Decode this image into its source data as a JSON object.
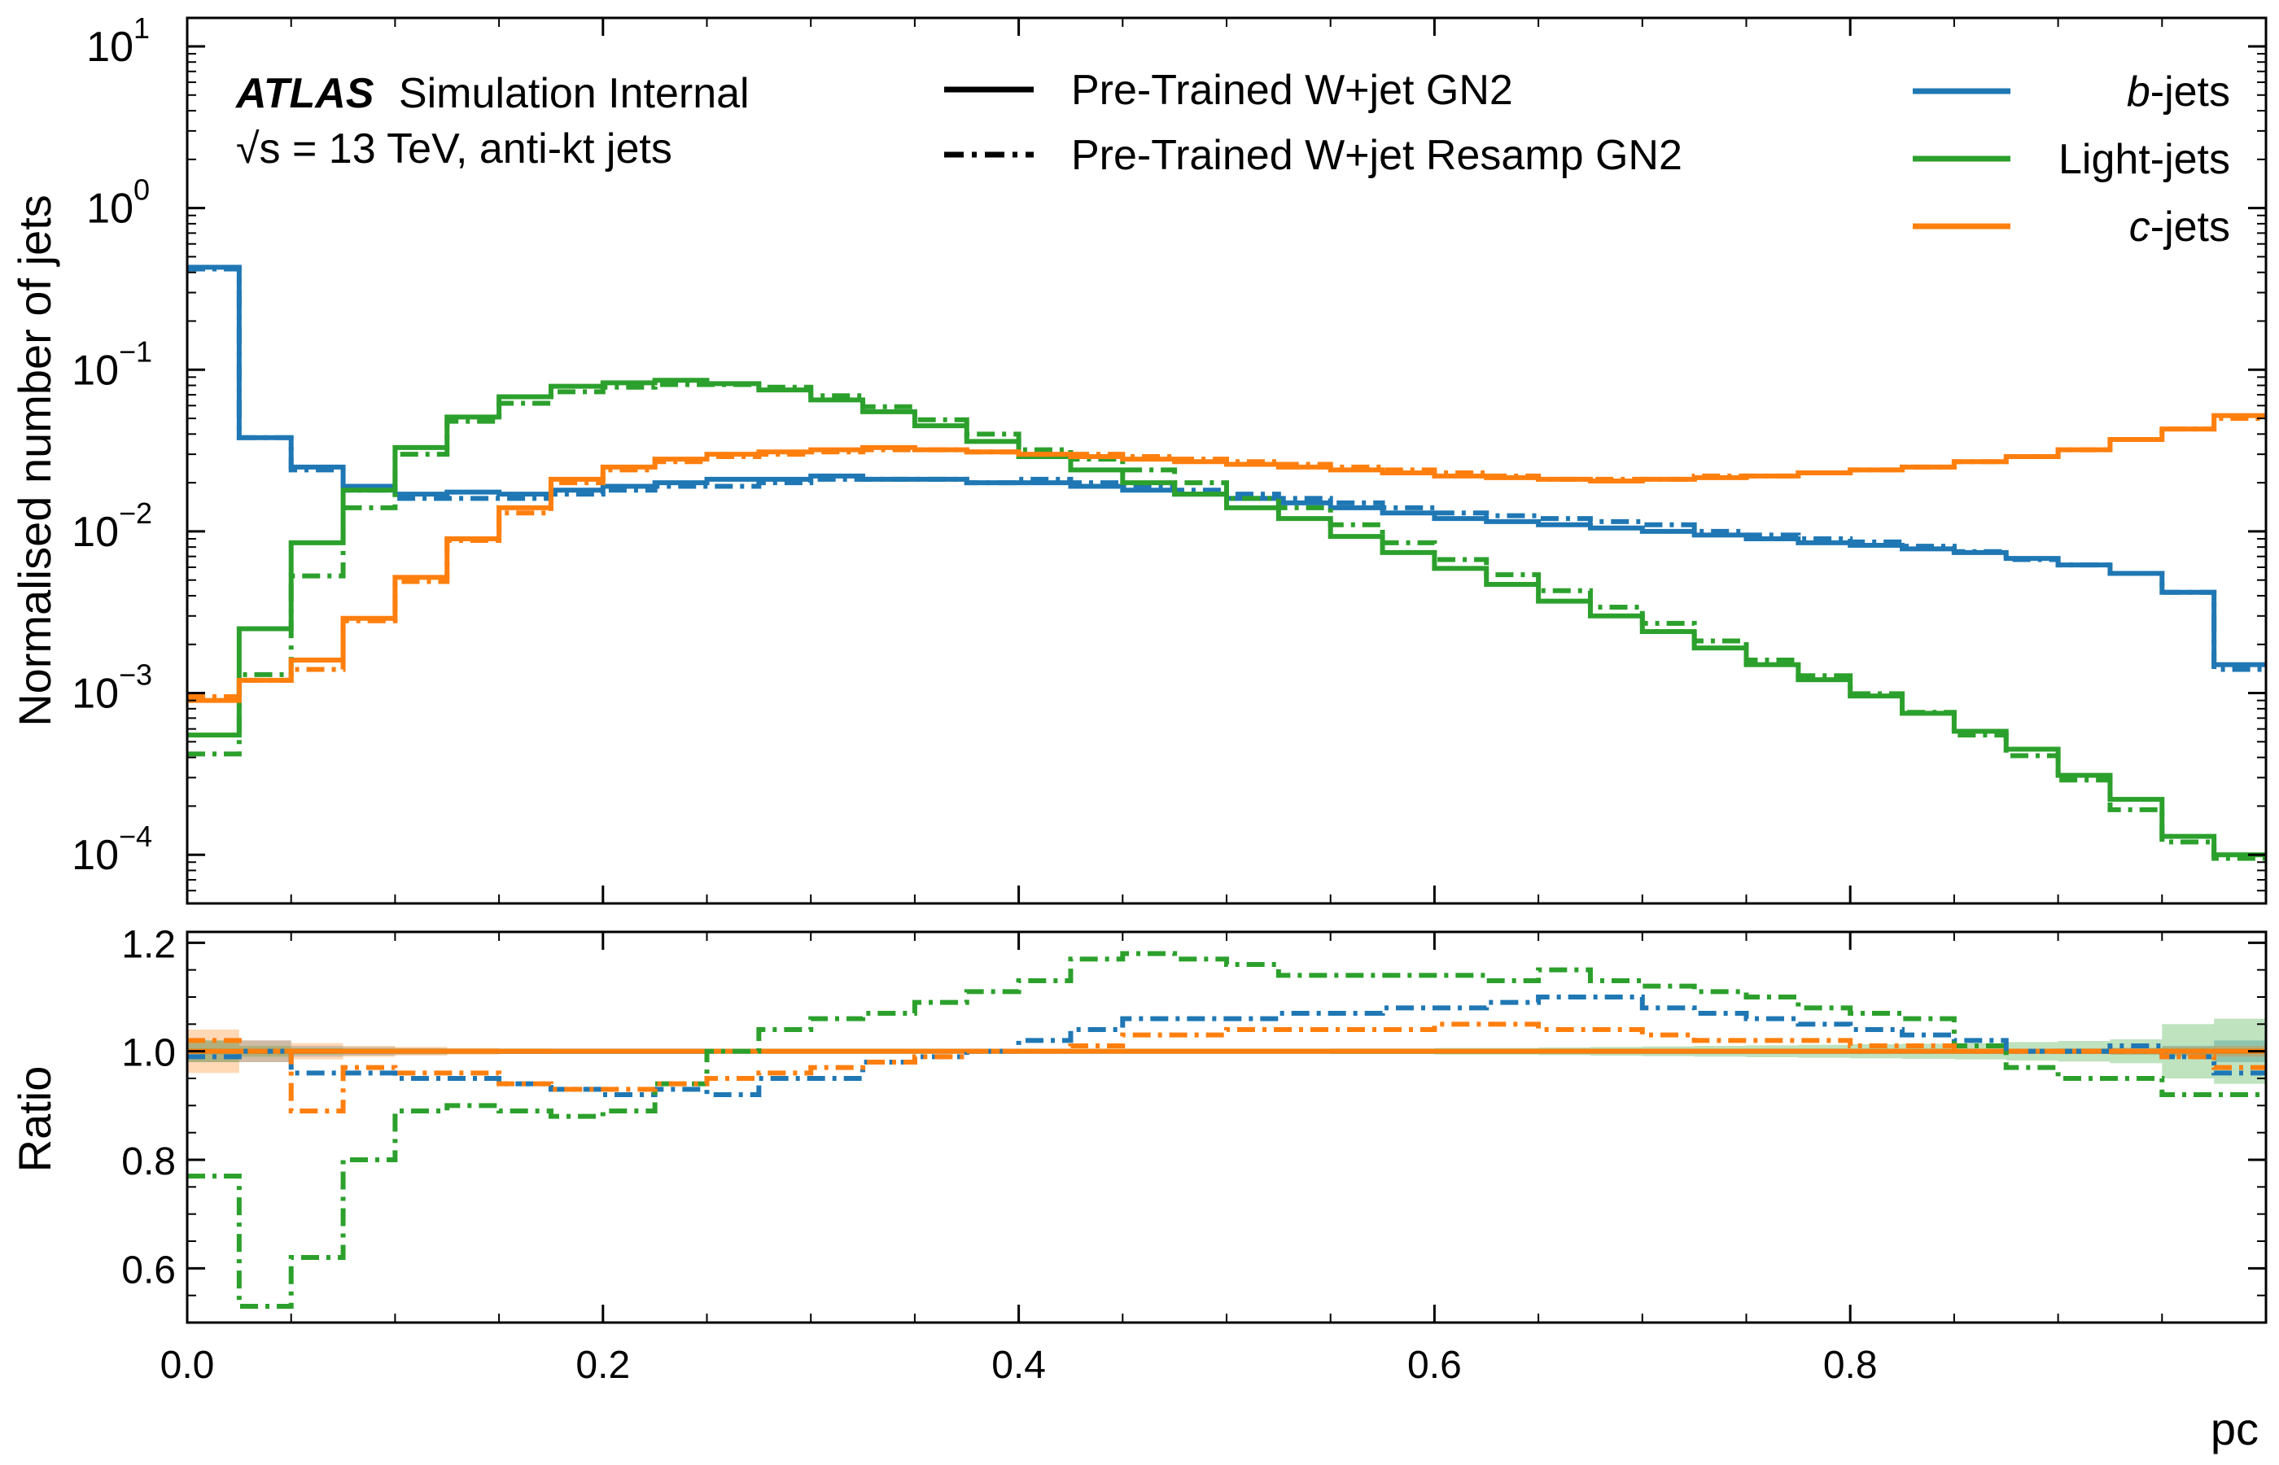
{
  "chart_data": [
    {
      "type": "line",
      "panel": "main",
      "ylabel": "Normalised number of jets",
      "yscale": "log",
      "ylim": [
        5e-05,
        15
      ],
      "xlim": [
        0.0,
        1.0
      ],
      "ytick_labels": [
        {
          "value": 0.0001,
          "base": "10",
          "exp": "−4"
        },
        {
          "value": 0.001,
          "base": "10",
          "exp": "−3"
        },
        {
          "value": 0.01,
          "base": "10",
          "exp": "−2"
        },
        {
          "value": 0.1,
          "base": "10",
          "exp": "−1"
        },
        {
          "value": 1,
          "base": "10",
          "exp": "0"
        },
        {
          "value": 10,
          "base": "10",
          "exp": "1"
        }
      ],
      "annotations": {
        "atlas": "ATLAS",
        "atlas_suffix": "Simulation Internal",
        "energy_line": "√s = 13 TeV, anti-kt jets"
      },
      "style_legend": [
        {
          "label": "Pre-Trained W+jet GN2",
          "style": "solid"
        },
        {
          "label": "Pre-Trained W+jet Resamp GN2",
          "style": "dashdot"
        }
      ],
      "legend": [
        {
          "label_prefix": "b",
          "label_suffix": "-jets",
          "color": "#1f77b4"
        },
        {
          "label_prefix": "",
          "label_suffix": "Light-jets",
          "color": "#2ca02c"
        },
        {
          "label_prefix": "c",
          "label_suffix": "-jets",
          "color": "#ff7f0e"
        }
      ],
      "legend_position": "top-right",
      "bin_edges": [
        0.0,
        0.025,
        0.05,
        0.075,
        0.1,
        0.125,
        0.15,
        0.175,
        0.2,
        0.225,
        0.25,
        0.275,
        0.3,
        0.325,
        0.35,
        0.375,
        0.4,
        0.425,
        0.45,
        0.475,
        0.5,
        0.525,
        0.55,
        0.575,
        0.6,
        0.625,
        0.65,
        0.675,
        0.7,
        0.725,
        0.75,
        0.775,
        0.8,
        0.825,
        0.85,
        0.875,
        0.9,
        0.925,
        0.95,
        0.975,
        1.0
      ],
      "series": [
        {
          "name": "b-jets",
          "color": "#1f77b4",
          "style": "solid",
          "values": [
            0.43,
            0.038,
            0.025,
            0.019,
            0.017,
            0.0175,
            0.017,
            0.018,
            0.019,
            0.02,
            0.021,
            0.021,
            0.022,
            0.021,
            0.021,
            0.02,
            0.02,
            0.019,
            0.018,
            0.017,
            0.016,
            0.015,
            0.014,
            0.013,
            0.012,
            0.0115,
            0.011,
            0.0105,
            0.01,
            0.0095,
            0.009,
            0.0085,
            0.0082,
            0.0078,
            0.0074,
            0.0068,
            0.0062,
            0.0055,
            0.0042,
            0.0015
          ]
        },
        {
          "name": "b-jets",
          "color": "#1f77b4",
          "style": "dashdot",
          "values": [
            0.42,
            0.038,
            0.024,
            0.018,
            0.016,
            0.016,
            0.016,
            0.017,
            0.018,
            0.019,
            0.019,
            0.02,
            0.021,
            0.021,
            0.021,
            0.02,
            0.021,
            0.02,
            0.019,
            0.018,
            0.017,
            0.016,
            0.015,
            0.014,
            0.013,
            0.0125,
            0.012,
            0.0115,
            0.011,
            0.01,
            0.0095,
            0.009,
            0.0086,
            0.0081,
            0.0075,
            0.0067,
            0.0062,
            0.0055,
            0.0042,
            0.0014
          ]
        },
        {
          "name": "Light-jets",
          "color": "#2ca02c",
          "style": "solid",
          "values": [
            0.00055,
            0.0025,
            0.0085,
            0.018,
            0.033,
            0.051,
            0.068,
            0.079,
            0.083,
            0.086,
            0.082,
            0.075,
            0.065,
            0.055,
            0.045,
            0.036,
            0.029,
            0.024,
            0.02,
            0.017,
            0.014,
            0.012,
            0.0093,
            0.0074,
            0.0059,
            0.0047,
            0.0037,
            0.003,
            0.0024,
            0.0019,
            0.0015,
            0.00121,
            0.00096,
            0.00075,
            0.00058,
            0.00045,
            0.00031,
            0.00022,
            0.00013,
            0.0001
          ]
        },
        {
          "name": "Light-jets",
          "color": "#2ca02c",
          "style": "dashdot",
          "values": [
            0.00042,
            0.0013,
            0.0053,
            0.014,
            0.03,
            0.048,
            0.062,
            0.073,
            0.078,
            0.081,
            0.081,
            0.078,
            0.069,
            0.059,
            0.049,
            0.04,
            0.032,
            0.028,
            0.024,
            0.02,
            0.016,
            0.014,
            0.011,
            0.0085,
            0.0067,
            0.0054,
            0.0043,
            0.0034,
            0.0027,
            0.0021,
            0.0016,
            0.00128,
            0.00099,
            0.00076,
            0.00055,
            0.00041,
            0.00029,
            0.00019,
            0.00012,
            9.5e-05
          ]
        },
        {
          "name": "c-jets",
          "color": "#ff7f0e",
          "style": "solid",
          "values": [
            0.0009,
            0.0012,
            0.0016,
            0.0029,
            0.0052,
            0.009,
            0.014,
            0.021,
            0.025,
            0.028,
            0.03,
            0.031,
            0.032,
            0.033,
            0.032,
            0.031,
            0.03,
            0.029,
            0.028,
            0.027,
            0.026,
            0.025,
            0.024,
            0.023,
            0.022,
            0.0215,
            0.021,
            0.0205,
            0.021,
            0.0215,
            0.022,
            0.023,
            0.024,
            0.025,
            0.027,
            0.029,
            0.032,
            0.037,
            0.043,
            0.052
          ]
        },
        {
          "name": "c-jets",
          "color": "#ff7f0e",
          "style": "dashdot",
          "values": [
            0.00095,
            0.0012,
            0.0014,
            0.0028,
            0.0049,
            0.0088,
            0.013,
            0.02,
            0.024,
            0.027,
            0.029,
            0.03,
            0.031,
            0.032,
            0.032,
            0.031,
            0.03,
            0.03,
            0.029,
            0.028,
            0.027,
            0.026,
            0.025,
            0.024,
            0.023,
            0.022,
            0.021,
            0.021,
            0.021,
            0.022,
            0.022,
            0.023,
            0.024,
            0.025,
            0.027,
            0.029,
            0.032,
            0.037,
            0.043,
            0.05
          ]
        }
      ]
    },
    {
      "type": "line",
      "panel": "ratio",
      "xlabel": "pc",
      "ylabel": "Ratio",
      "ylim": [
        0.5,
        1.22
      ],
      "xlim": [
        0.0,
        1.0
      ],
      "x_ticks": [
        0.0,
        0.2,
        0.4,
        0.6,
        0.8
      ],
      "x_tick_labels": [
        "0.0",
        "0.2",
        "0.4",
        "0.6",
        "0.8"
      ],
      "y_ticks": [
        0.6,
        0.8,
        1.0,
        1.2
      ],
      "y_tick_labels": [
        "0.6",
        "0.8",
        "1.0",
        "1.2"
      ],
      "bin_edges": [
        0.0,
        0.025,
        0.05,
        0.075,
        0.1,
        0.125,
        0.15,
        0.175,
        0.2,
        0.225,
        0.25,
        0.275,
        0.3,
        0.325,
        0.35,
        0.375,
        0.4,
        0.425,
        0.45,
        0.475,
        0.5,
        0.525,
        0.55,
        0.575,
        0.6,
        0.625,
        0.65,
        0.675,
        0.7,
        0.725,
        0.75,
        0.775,
        0.8,
        0.825,
        0.85,
        0.875,
        0.9,
        0.925,
        0.95,
        0.975,
        1.0
      ],
      "series": [
        {
          "name": "b-jets",
          "color": "#1f77b4",
          "style": "solid",
          "values": [
            1,
            1,
            1,
            1,
            1,
            1,
            1,
            1,
            1,
            1,
            1,
            1,
            1,
            1,
            1,
            1,
            1,
            1,
            1,
            1,
            1,
            1,
            1,
            1,
            1,
            1,
            1,
            1,
            1,
            1,
            1,
            1,
            1,
            1,
            1,
            1,
            1,
            1,
            1,
            1
          ],
          "unc": [
            0.02,
            0.02,
            0.01,
            0.008,
            0.006,
            0.005,
            0.005,
            0.005,
            0.005,
            0.005,
            0.004,
            0.004,
            0.004,
            0.004,
            0.004,
            0.004,
            0.004,
            0.004,
            0.004,
            0.004,
            0.004,
            0.004,
            0.004,
            0.004,
            0.004,
            0.004,
            0.004,
            0.004,
            0.004,
            0.004,
            0.004,
            0.004,
            0.004,
            0.004,
            0.004,
            0.004,
            0.005,
            0.006,
            0.01,
            0.02
          ]
        },
        {
          "name": "Light-jets",
          "color": "#2ca02c",
          "style": "solid",
          "values": [
            1,
            1,
            1,
            1,
            1,
            1,
            1,
            1,
            1,
            1,
            1,
            1,
            1,
            1,
            1,
            1,
            1,
            1,
            1,
            1,
            1,
            1,
            1,
            1,
            1,
            1,
            1,
            1,
            1,
            1,
            1,
            1,
            1,
            1,
            1,
            1,
            1,
            1,
            1,
            1
          ],
          "unc": [
            0.02,
            0.01,
            0.006,
            0.004,
            0.003,
            0.003,
            0.003,
            0.003,
            0.003,
            0.003,
            0.003,
            0.003,
            0.003,
            0.003,
            0.003,
            0.003,
            0.003,
            0.003,
            0.003,
            0.004,
            0.004,
            0.004,
            0.005,
            0.005,
            0.006,
            0.006,
            0.007,
            0.008,
            0.009,
            0.01,
            0.011,
            0.012,
            0.013,
            0.014,
            0.015,
            0.017,
            0.019,
            0.022,
            0.05,
            0.06
          ]
        },
        {
          "name": "c-jets",
          "color": "#ff7f0e",
          "style": "solid",
          "values": [
            1,
            1,
            1,
            1,
            1,
            1,
            1,
            1,
            1,
            1,
            1,
            1,
            1,
            1,
            1,
            1,
            1,
            1,
            1,
            1,
            1,
            1,
            1,
            1,
            1,
            1,
            1,
            1,
            1,
            1,
            1,
            1,
            1,
            1,
            1,
            1,
            1,
            1,
            1,
            1
          ],
          "unc": [
            0.04,
            0.02,
            0.015,
            0.01,
            0.008,
            0.006,
            0.005,
            0.004,
            0.004,
            0.004,
            0.004,
            0.004,
            0.004,
            0.004,
            0.004,
            0.004,
            0.004,
            0.004,
            0.004,
            0.004,
            0.004,
            0.004,
            0.004,
            0.004,
            0.004,
            0.004,
            0.004,
            0.004,
            0.004,
            0.004,
            0.004,
            0.004,
            0.004,
            0.004,
            0.004,
            0.004,
            0.005,
            0.006,
            0.008,
            0.01
          ]
        },
        {
          "name": "b-jets",
          "color": "#1f77b4",
          "style": "dashdot",
          "values": [
            0.99,
            1.0,
            0.96,
            0.96,
            0.95,
            0.95,
            0.94,
            0.93,
            0.92,
            0.93,
            0.92,
            0.95,
            0.95,
            0.98,
            0.99,
            1.0,
            1.02,
            1.04,
            1.06,
            1.06,
            1.06,
            1.07,
            1.07,
            1.08,
            1.08,
            1.09,
            1.1,
            1.1,
            1.08,
            1.07,
            1.06,
            1.05,
            1.04,
            1.03,
            1.02,
            1.0,
            1.0,
            1.01,
            0.99,
            0.96
          ]
        },
        {
          "name": "Light-jets",
          "color": "#2ca02c",
          "style": "dashdot",
          "values": [
            0.77,
            0.53,
            0.62,
            0.8,
            0.89,
            0.9,
            0.89,
            0.88,
            0.89,
            0.94,
            1.0,
            1.04,
            1.06,
            1.07,
            1.09,
            1.11,
            1.13,
            1.17,
            1.18,
            1.17,
            1.16,
            1.14,
            1.14,
            1.14,
            1.14,
            1.13,
            1.15,
            1.13,
            1.12,
            1.11,
            1.1,
            1.08,
            1.07,
            1.06,
            1.01,
            0.97,
            0.95,
            0.95,
            0.92,
            0.92
          ]
        },
        {
          "name": "c-jets",
          "color": "#ff7f0e",
          "style": "dashdot",
          "values": [
            1.02,
            1.0,
            0.89,
            0.97,
            0.96,
            0.96,
            0.94,
            0.93,
            0.93,
            0.94,
            0.95,
            0.96,
            0.97,
            0.98,
            0.99,
            1.0,
            1.0,
            1.01,
            1.03,
            1.03,
            1.04,
            1.04,
            1.04,
            1.04,
            1.05,
            1.05,
            1.04,
            1.04,
            1.03,
            1.02,
            1.02,
            1.02,
            1.01,
            1.01,
            1.0,
            1.0,
            1.0,
            1.0,
            0.99,
            0.97
          ]
        }
      ]
    }
  ]
}
